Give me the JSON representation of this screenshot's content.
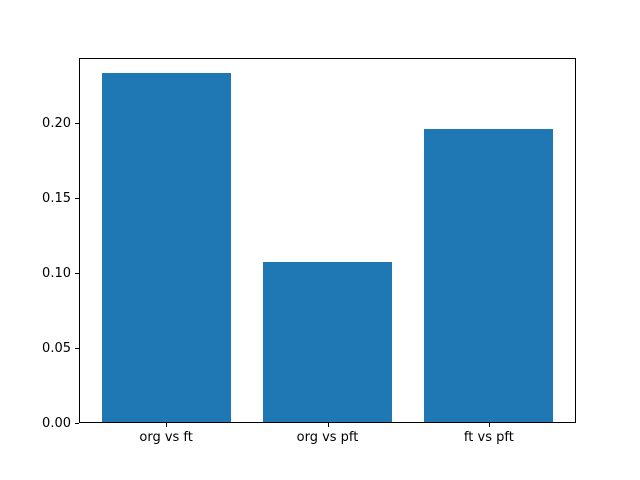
{
  "chart_data": {
    "type": "bar",
    "title": "",
    "categories": [
      "org vs ft",
      "org vs pft",
      "ft vs pft"
    ],
    "values": [
      0.233,
      0.107,
      0.196
    ],
    "xlabel": "",
    "ylabel": "",
    "ylim": [
      0,
      0.244
    ],
    "xlim": [
      -0.54,
      2.54
    ],
    "yticks": [
      0,
      0.05,
      0.1,
      0.15,
      0.2
    ],
    "ytick_labels": [
      "0.00",
      "0.05",
      "0.10",
      "0.15",
      "0.20"
    ],
    "bar_width_units": 0.8,
    "bar_color": "#1f77b4",
    "spine_color": "#000000",
    "background_color": "#ffffff",
    "grid": false,
    "legend_position": "none"
  }
}
